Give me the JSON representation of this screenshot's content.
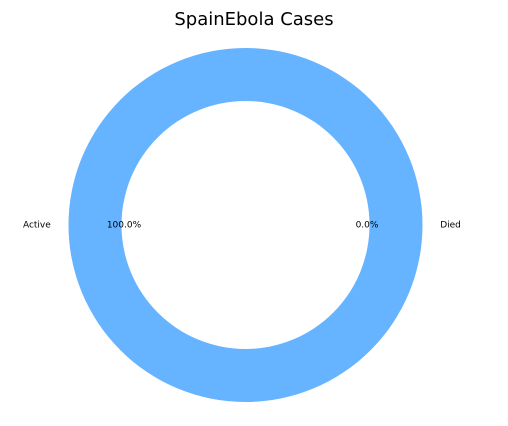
{
  "chart_data": {
    "type": "pie",
    "style": "donut",
    "title": "SpainEbola  Cases",
    "labels": [
      "Active",
      "Died"
    ],
    "values": [
      100.0,
      0.0
    ],
    "percent_labels": [
      "100.0%",
      "0.0%"
    ],
    "colors": [
      "#66b3ff",
      "#ff9999"
    ],
    "center_color": "#ffffff"
  }
}
